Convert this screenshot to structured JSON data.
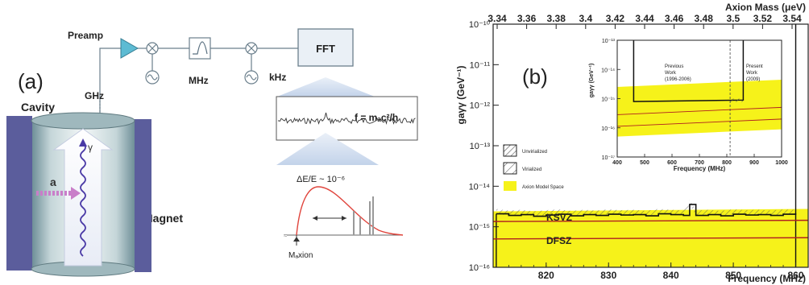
{
  "panel_a": {
    "label": "(a)",
    "preamp": "Preamp",
    "ghz": "GHz",
    "mhz": "MHz",
    "khz": "kHz",
    "fft": "FFT",
    "cavity": "Cavity",
    "magnet": "Magnet",
    "photon": "γ",
    "axion": "a",
    "formula": "f = mₐc²/h",
    "delta_e": "ΔE/E ~ 10⁻⁶",
    "m_axion": "Mₐxion"
  },
  "panel_b": {
    "label": "(b)",
    "top_axis_title": "Axion Mass (μeV)",
    "bottom_axis_title": "Frequency (MHz)",
    "y_axis_title": "gaγγ (GeV⁻¹)",
    "ksvz": "KSVZ",
    "dfsz": "DFSZ",
    "legend": {
      "unvirialized": "Unvirialized",
      "virialized": "Virialized",
      "model_space": "Axion Model Space"
    },
    "inset": {
      "y_axis_title": "gaγγ (GeV⁻¹)",
      "x_axis_title": "Frequency (MHz)",
      "previous": [
        "Previous",
        "Work",
        "(1996-2006)"
      ],
      "present": [
        "Present",
        "Work",
        "(2009)"
      ]
    }
  },
  "chart_data": [
    {
      "type": "area",
      "x_ticks": [
        "820",
        "830",
        "840",
        "850",
        "860"
      ],
      "x_top_ticks": [
        "3.34",
        "3.36",
        "3.38",
        "3.4",
        "3.42",
        "3.44",
        "3.46",
        "3.48",
        "3.5",
        "3.52",
        "3.54"
      ],
      "y_ticks": [
        "10⁻¹⁰",
        "10⁻¹¹",
        "10⁻¹²",
        "10⁻¹³",
        "10⁻¹⁴",
        "10⁻¹⁵",
        "10⁻¹⁶"
      ],
      "xlim": [
        811.5,
        862
      ],
      "ylim_log10": [
        -16,
        -10
      ],
      "y_scale": "log",
      "xlabel": "Frequency (MHz)",
      "ylabel": "gaγγ (GeV⁻¹)",
      "x2label": "Axion Mass (μeV)",
      "exclusion_x": [
        812,
        814,
        816,
        818,
        820,
        822,
        824,
        826,
        828,
        830,
        832,
        834,
        836,
        838,
        840,
        842,
        843,
        844,
        846,
        848,
        850,
        852,
        854,
        856,
        858,
        860
      ],
      "exclusion_log10": [
        -14.68,
        -14.72,
        -14.7,
        -14.74,
        -14.71,
        -14.69,
        -14.73,
        -14.7,
        -14.72,
        -14.69,
        -14.71,
        -14.7,
        -14.73,
        -14.68,
        -14.7,
        -14.72,
        -14.45,
        -14.72,
        -14.7,
        -14.73,
        -14.69,
        -14.71,
        -14.7,
        -14.72,
        -14.69,
        -14.7
      ],
      "ksvz_log10": [
        -14.87,
        -14.84
      ],
      "dfsz_log10": [
        -15.3,
        -15.27
      ],
      "model_band_log10": [
        [
          -16.0,
          -14.62
        ],
        [
          -16.0,
          -14.56
        ]
      ]
    },
    {
      "type": "area",
      "x_ticks": [
        "400",
        "500",
        "600",
        "700",
        "800",
        "900",
        "1000"
      ],
      "y_ticks": [
        "10⁻¹³",
        "10⁻¹⁴",
        "10⁻¹⁵",
        "10⁻¹⁶",
        "10⁻¹⁷"
      ],
      "xlim": [
        400,
        1000
      ],
      "ylim_log10": [
        -17,
        -13
      ],
      "y_scale": "log",
      "xlabel": "Frequency (MHz)",
      "ylabel": "gaγγ (GeV⁻¹)",
      "previous_range": [
        460,
        810
      ],
      "present_range": [
        812,
        860
      ],
      "exclusion_log10": -15.1
    }
  ]
}
